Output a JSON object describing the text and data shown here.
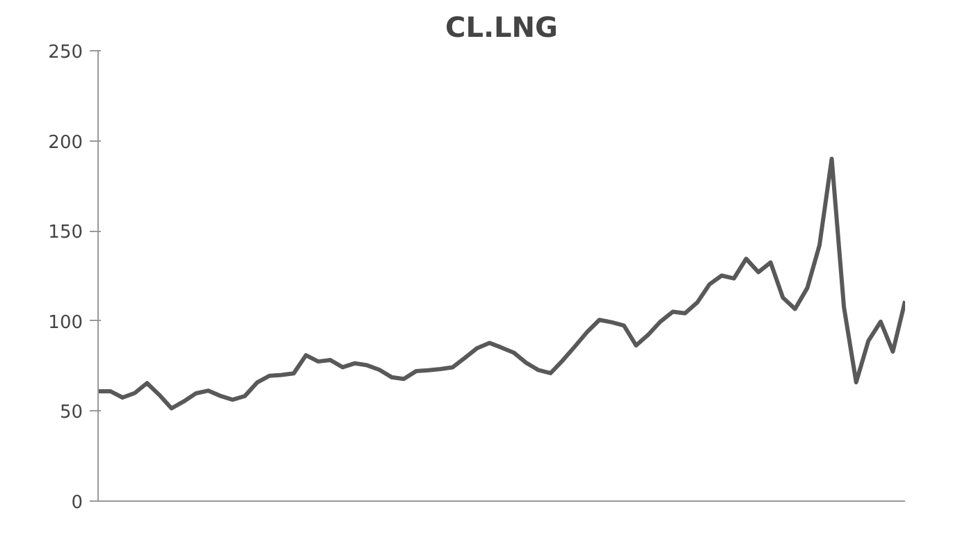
{
  "chart_data": {
    "type": "line",
    "title": "CL.LNG",
    "categories": [
      null,
      null,
      null,
      null,
      null,
      null,
      null,
      null,
      null,
      null,
      null,
      null,
      null,
      null,
      null,
      null,
      null,
      null,
      null,
      null,
      null,
      null,
      null,
      null,
      null,
      null,
      null,
      null,
      null,
      null,
      null,
      null,
      null,
      null,
      null,
      null,
      null,
      null,
      null,
      null,
      null,
      null,
      null,
      null,
      null,
      null,
      null,
      null,
      null,
      null,
      null,
      null,
      null,
      null,
      null,
      null,
      null,
      null,
      null,
      null,
      null,
      null,
      null,
      null,
      null,
      null,
      null
    ],
    "series": [
      {
        "color": "#595959",
        "values": [
          61,
          61,
          57.5,
          60,
          65.5,
          59,
          51.5,
          55.3,
          59.8,
          61.3,
          58.4,
          56.3,
          58.3,
          65.8,
          69.5,
          70,
          70.9,
          81,
          77.5,
          78.3,
          74.3,
          76.5,
          75.4,
          72.9,
          68.8,
          67.8,
          72.1,
          72.6,
          73.3,
          74.3,
          79.5,
          84.9,
          87.8,
          85.2,
          82.4,
          76.8,
          72.8,
          71,
          78.1,
          85.9,
          93.9,
          100.6,
          99.3,
          97.5,
          86.4,
          92.4,
          99.7,
          105.1,
          104.3,
          110.2,
          120.3,
          125.2,
          123.6,
          134.5,
          127.1,
          132.5,
          113,
          106.7,
          118.3,
          142,
          190,
          107.6,
          66,
          89,
          99.6,
          83,
          111
        ]
      }
    ],
    "ylim": [
      0,
      250
    ],
    "yticks": [
      0,
      50,
      100,
      150,
      200,
      250
    ],
    "tick_labels": "y",
    "line_style": "solid"
  }
}
